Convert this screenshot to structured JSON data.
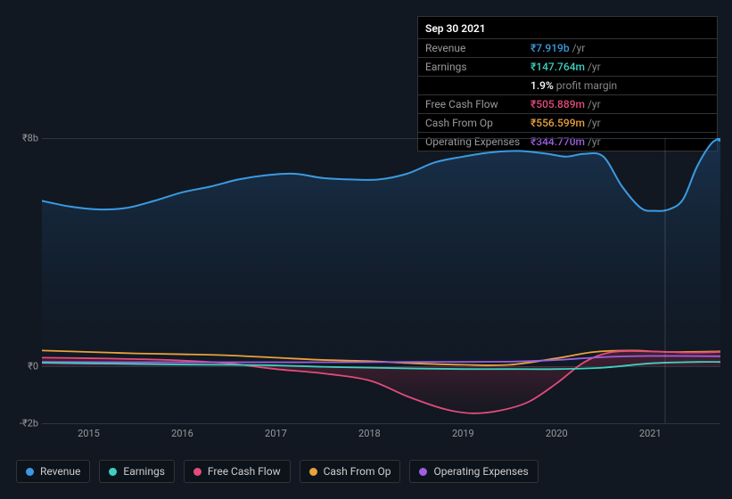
{
  "chart": {
    "type": "area-line-multi",
    "background_color": "#111822",
    "grid_color": "#2a3744",
    "font_color": "#999999",
    "label_fontsize": 11,
    "currency_symbol": "₹",
    "y_axis": {
      "min": -2,
      "max": 8,
      "ticks": [
        {
          "v": 8,
          "label": "₹8b"
        },
        {
          "v": 0,
          "label": "₹0"
        },
        {
          "v": -2,
          "label": "-₹2b"
        }
      ]
    },
    "x_axis": {
      "min": 2014.5,
      "max": 2021.75,
      "ticks": [
        2015,
        2016,
        2017,
        2018,
        2019,
        2020,
        2021
      ]
    },
    "crosshair_x": 2021.15,
    "series": [
      {
        "key": "revenue",
        "label": "Revenue",
        "color": "#3b9ae1",
        "fill": true,
        "fill_gradient_top": "rgba(30,70,110,0.55)",
        "fill_gradient_bottom": "rgba(20,35,55,0.05)",
        "stroke_width": 2,
        "points": [
          [
            2014.5,
            5.8
          ],
          [
            2014.8,
            5.6
          ],
          [
            2015.1,
            5.5
          ],
          [
            2015.4,
            5.55
          ],
          [
            2015.7,
            5.8
          ],
          [
            2016.0,
            6.1
          ],
          [
            2016.3,
            6.3
          ],
          [
            2016.6,
            6.55
          ],
          [
            2016.9,
            6.7
          ],
          [
            2017.2,
            6.75
          ],
          [
            2017.5,
            6.6
          ],
          [
            2017.8,
            6.55
          ],
          [
            2018.1,
            6.55
          ],
          [
            2018.4,
            6.75
          ],
          [
            2018.7,
            7.15
          ],
          [
            2019.0,
            7.35
          ],
          [
            2019.3,
            7.5
          ],
          [
            2019.6,
            7.55
          ],
          [
            2019.9,
            7.45
          ],
          [
            2020.1,
            7.35
          ],
          [
            2020.3,
            7.45
          ],
          [
            2020.5,
            7.35
          ],
          [
            2020.7,
            6.3
          ],
          [
            2020.9,
            5.55
          ],
          [
            2021.05,
            5.45
          ],
          [
            2021.2,
            5.5
          ],
          [
            2021.35,
            5.85
          ],
          [
            2021.5,
            7.0
          ],
          [
            2021.65,
            7.8
          ],
          [
            2021.75,
            8.0
          ]
        ]
      },
      {
        "key": "cash_from_op",
        "label": "Cash From Op",
        "color": "#e8a23b",
        "fill": false,
        "stroke_width": 1.8,
        "points": [
          [
            2014.5,
            0.55
          ],
          [
            2015.0,
            0.5
          ],
          [
            2015.5,
            0.45
          ],
          [
            2016.0,
            0.42
          ],
          [
            2016.5,
            0.38
          ],
          [
            2017.0,
            0.3
          ],
          [
            2017.5,
            0.22
          ],
          [
            2018.0,
            0.18
          ],
          [
            2018.5,
            0.1
          ],
          [
            2019.0,
            0.05
          ],
          [
            2019.5,
            0.05
          ],
          [
            2020.0,
            0.28
          ],
          [
            2020.4,
            0.5
          ],
          [
            2020.8,
            0.55
          ],
          [
            2021.2,
            0.5
          ],
          [
            2021.75,
            0.52
          ]
        ]
      },
      {
        "key": "free_cash_flow",
        "label": "Free Cash Flow",
        "color": "#e34b7a",
        "fill": true,
        "fill_gradient_top": "rgba(160,40,70,0.35)",
        "fill_gradient_bottom": "rgba(160,40,70,0.02)",
        "stroke_width": 1.8,
        "points": [
          [
            2014.5,
            0.3
          ],
          [
            2015.0,
            0.28
          ],
          [
            2015.5,
            0.25
          ],
          [
            2016.0,
            0.2
          ],
          [
            2016.5,
            0.1
          ],
          [
            2017.0,
            -0.1
          ],
          [
            2017.5,
            -0.25
          ],
          [
            2018.0,
            -0.5
          ],
          [
            2018.4,
            -1.05
          ],
          [
            2018.8,
            -1.5
          ],
          [
            2019.1,
            -1.65
          ],
          [
            2019.4,
            -1.55
          ],
          [
            2019.7,
            -1.25
          ],
          [
            2020.0,
            -0.6
          ],
          [
            2020.3,
            0.15
          ],
          [
            2020.6,
            0.5
          ],
          [
            2021.0,
            0.52
          ],
          [
            2021.4,
            0.48
          ],
          [
            2021.75,
            0.5
          ]
        ]
      },
      {
        "key": "operating_expenses",
        "label": "Operating Expenses",
        "color": "#9d5fe0",
        "fill": false,
        "stroke_width": 1.8,
        "points": [
          [
            2014.5,
            0.15
          ],
          [
            2015.5,
            0.14
          ],
          [
            2016.5,
            0.14
          ],
          [
            2017.5,
            0.14
          ],
          [
            2018.5,
            0.15
          ],
          [
            2019.5,
            0.16
          ],
          [
            2020.0,
            0.22
          ],
          [
            2020.5,
            0.32
          ],
          [
            2021.0,
            0.36
          ],
          [
            2021.75,
            0.35
          ]
        ]
      },
      {
        "key": "earnings",
        "label": "Earnings",
        "color": "#3dd0c0",
        "fill": false,
        "stroke_width": 1.8,
        "points": [
          [
            2014.5,
            0.12
          ],
          [
            2015.0,
            0.1
          ],
          [
            2015.5,
            0.08
          ],
          [
            2016.0,
            0.06
          ],
          [
            2016.5,
            0.05
          ],
          [
            2017.0,
            0.03
          ],
          [
            2017.5,
            -0.02
          ],
          [
            2018.0,
            -0.05
          ],
          [
            2018.5,
            -0.08
          ],
          [
            2019.0,
            -0.1
          ],
          [
            2019.5,
            -0.1
          ],
          [
            2020.0,
            -0.1
          ],
          [
            2020.5,
            -0.05
          ],
          [
            2021.0,
            0.1
          ],
          [
            2021.5,
            0.15
          ],
          [
            2021.75,
            0.15
          ]
        ]
      }
    ]
  },
  "tooltip": {
    "date": "Sep 30 2021",
    "suffix": "/yr",
    "rows": [
      {
        "label": "Revenue",
        "value": "₹7.919b",
        "color": "#3b9ae1"
      },
      {
        "label": "Earnings",
        "value": "₹147.764m",
        "color": "#3dd0c0",
        "sub_pct": "1.9%",
        "sub_text": "profit margin"
      },
      {
        "label": "Free Cash Flow",
        "value": "₹505.889m",
        "color": "#e34b7a"
      },
      {
        "label": "Cash From Op",
        "value": "₹556.599m",
        "color": "#e8a23b"
      },
      {
        "label": "Operating Expenses",
        "value": "₹344.770m",
        "color": "#9d5fe0"
      }
    ]
  },
  "legend": [
    {
      "label": "Revenue",
      "color": "#3b9ae1"
    },
    {
      "label": "Earnings",
      "color": "#3dd0c0"
    },
    {
      "label": "Free Cash Flow",
      "color": "#e34b7a"
    },
    {
      "label": "Cash From Op",
      "color": "#e8a23b"
    },
    {
      "label": "Operating Expenses",
      "color": "#9d5fe0"
    }
  ]
}
